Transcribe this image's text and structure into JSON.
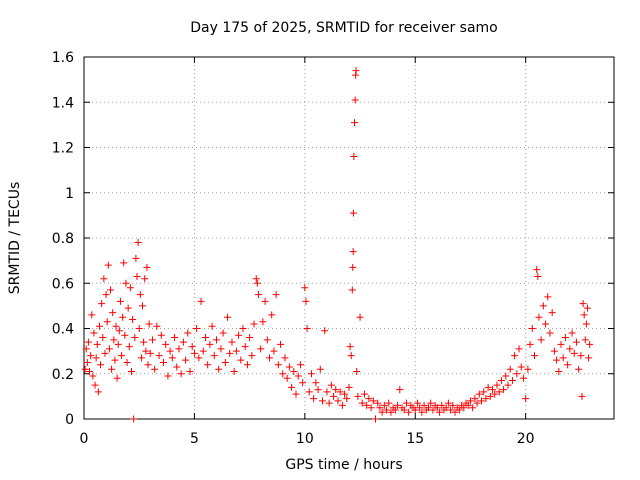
{
  "chart_data": {
    "type": "scatter",
    "title": "Day 175 of 2025, SRMTID for receiver samo",
    "xlabel": "GPS time / hours",
    "ylabel": "SRMTID / TECUs",
    "xlim": [
      0,
      24
    ],
    "ylim": [
      0,
      1.6
    ],
    "x_ticks": [
      0,
      5,
      10,
      15,
      20
    ],
    "y_ticks": [
      0,
      0.2,
      0.4,
      0.6,
      0.8,
      1,
      1.2,
      1.4,
      1.6
    ],
    "x_tick_labels": [
      "0",
      "5",
      "10",
      "15",
      "20"
    ],
    "y_tick_labels": [
      "0",
      "0.2",
      "0.4",
      "0.6",
      "0.8",
      "1",
      "1.2",
      "1.4",
      "1.6"
    ],
    "grid": true,
    "marker": "+",
    "marker_color": "#ff0000",
    "series": [
      {
        "name": "SRMTID",
        "points": [
          [
            0.05,
            0.22
          ],
          [
            0.1,
            0.31
          ],
          [
            0.15,
            0.25
          ],
          [
            0.2,
            0.34
          ],
          [
            0.25,
            0.21
          ],
          [
            0.3,
            0.28
          ],
          [
            0.35,
            0.46
          ],
          [
            0.4,
            0.19
          ],
          [
            0.45,
            0.38
          ],
          [
            0.5,
            0.15
          ],
          [
            0.55,
            0.27
          ],
          [
            0.6,
            0.33
          ],
          [
            0.65,
            0.12
          ],
          [
            0.7,
            0.41
          ],
          [
            0.75,
            0.24
          ],
          [
            0.8,
            0.51
          ],
          [
            0.85,
            0.36
          ],
          [
            0.9,
            0.62
          ],
          [
            0.95,
            0.29
          ],
          [
            1.0,
            0.55
          ],
          [
            1.05,
            0.43
          ],
          [
            1.1,
            0.68
          ],
          [
            1.15,
            0.31
          ],
          [
            1.2,
            0.57
          ],
          [
            1.25,
            0.22
          ],
          [
            1.3,
            0.47
          ],
          [
            1.35,
            0.35
          ],
          [
            1.4,
            0.26
          ],
          [
            1.45,
            0.41
          ],
          [
            1.5,
            0.18
          ],
          [
            1.55,
            0.33
          ],
          [
            1.6,
            0.39
          ],
          [
            1.65,
            0.52
          ],
          [
            1.7,
            0.28
          ],
          [
            1.75,
            0.45
          ],
          [
            1.8,
            0.69
          ],
          [
            1.85,
            0.37
          ],
          [
            1.9,
            0.6
          ],
          [
            1.95,
            0.25
          ],
          [
            2.0,
            0.49
          ],
          [
            2.05,
            0.32
          ],
          [
            2.1,
            0.58
          ],
          [
            2.15,
            0.21
          ],
          [
            2.2,
            0.44
          ],
          [
            2.25,
            0.0
          ],
          [
            2.3,
            0.36
          ],
          [
            2.35,
            0.71
          ],
          [
            2.4,
            0.63
          ],
          [
            2.45,
            0.78
          ],
          [
            2.5,
            0.4
          ],
          [
            2.55,
            0.55
          ],
          [
            2.6,
            0.27
          ],
          [
            2.65,
            0.5
          ],
          [
            2.7,
            0.34
          ],
          [
            2.75,
            0.62
          ],
          [
            2.8,
            0.3
          ],
          [
            2.85,
            0.67
          ],
          [
            2.9,
            0.24
          ],
          [
            2.95,
            0.42
          ],
          [
            3.0,
            0.29
          ],
          [
            3.1,
            0.35
          ],
          [
            3.2,
            0.22
          ],
          [
            3.3,
            0.41
          ],
          [
            3.4,
            0.28
          ],
          [
            3.5,
            0.37
          ],
          [
            3.6,
            0.25
          ],
          [
            3.7,
            0.33
          ],
          [
            3.8,
            0.19
          ],
          [
            3.9,
            0.3
          ],
          [
            4.0,
            0.27
          ],
          [
            4.1,
            0.36
          ],
          [
            4.2,
            0.23
          ],
          [
            4.3,
            0.31
          ],
          [
            4.4,
            0.2
          ],
          [
            4.5,
            0.34
          ],
          [
            4.6,
            0.26
          ],
          [
            4.7,
            0.38
          ],
          [
            4.8,
            0.21
          ],
          [
            4.9,
            0.32
          ],
          [
            5.0,
            0.29
          ],
          [
            5.1,
            0.4
          ],
          [
            5.2,
            0.27
          ],
          [
            5.3,
            0.52
          ],
          [
            5.4,
            0.3
          ],
          [
            5.5,
            0.36
          ],
          [
            5.6,
            0.24
          ],
          [
            5.7,
            0.33
          ],
          [
            5.8,
            0.41
          ],
          [
            5.9,
            0.28
          ],
          [
            6.0,
            0.35
          ],
          [
            6.1,
            0.22
          ],
          [
            6.2,
            0.31
          ],
          [
            6.3,
            0.38
          ],
          [
            6.4,
            0.25
          ],
          [
            6.5,
            0.45
          ],
          [
            6.6,
            0.29
          ],
          [
            6.7,
            0.34
          ],
          [
            6.8,
            0.21
          ],
          [
            6.9,
            0.3
          ],
          [
            7.0,
            0.37
          ],
          [
            7.1,
            0.26
          ],
          [
            7.2,
            0.4
          ],
          [
            7.3,
            0.32
          ],
          [
            7.4,
            0.24
          ],
          [
            7.5,
            0.36
          ],
          [
            7.6,
            0.28
          ],
          [
            7.7,
            0.42
          ],
          [
            7.8,
            0.62
          ],
          [
            7.85,
            0.6
          ],
          [
            7.9,
            0.55
          ],
          [
            8.0,
            0.31
          ],
          [
            8.1,
            0.43
          ],
          [
            8.2,
            0.52
          ],
          [
            8.3,
            0.35
          ],
          [
            8.4,
            0.27
          ],
          [
            8.5,
            0.46
          ],
          [
            8.6,
            0.3
          ],
          [
            8.7,
            0.55
          ],
          [
            8.8,
            0.24
          ],
          [
            8.9,
            0.33
          ],
          [
            9.0,
            0.2
          ],
          [
            9.1,
            0.27
          ],
          [
            9.2,
            0.18
          ],
          [
            9.3,
            0.23
          ],
          [
            9.4,
            0.14
          ],
          [
            9.5,
            0.21
          ],
          [
            9.6,
            0.11
          ],
          [
            9.7,
            0.19
          ],
          [
            9.8,
            0.24
          ],
          [
            9.9,
            0.16
          ],
          [
            10.0,
            0.58
          ],
          [
            10.05,
            0.52
          ],
          [
            10.1,
            0.4
          ],
          [
            10.2,
            0.12
          ],
          [
            10.3,
            0.2
          ],
          [
            10.4,
            0.09
          ],
          [
            10.5,
            0.16
          ],
          [
            10.6,
            0.13
          ],
          [
            10.7,
            0.22
          ],
          [
            10.8,
            0.08
          ],
          [
            10.9,
            0.39
          ],
          [
            11.0,
            0.12
          ],
          [
            11.1,
            0.07
          ],
          [
            11.2,
            0.15
          ],
          [
            11.3,
            0.1
          ],
          [
            11.4,
            0.13
          ],
          [
            11.5,
            0.08
          ],
          [
            11.6,
            0.12
          ],
          [
            11.7,
            0.06
          ],
          [
            11.8,
            0.11
          ],
          [
            11.9,
            0.09
          ],
          [
            12.0,
            0.14
          ],
          [
            12.05,
            0.32
          ],
          [
            12.1,
            0.28
          ],
          [
            12.15,
            0.57
          ],
          [
            12.17,
            0.67
          ],
          [
            12.19,
            0.74
          ],
          [
            12.2,
            0.91
          ],
          [
            12.22,
            1.16
          ],
          [
            12.25,
            1.31
          ],
          [
            12.28,
            1.41
          ],
          [
            12.3,
            1.52
          ],
          [
            12.32,
            1.54
          ],
          [
            12.35,
            0.21
          ],
          [
            12.4,
            0.1
          ],
          [
            12.5,
            0.45
          ],
          [
            12.6,
            0.07
          ],
          [
            12.7,
            0.11
          ],
          [
            12.8,
            0.06
          ],
          [
            12.9,
            0.09
          ],
          [
            13.0,
            0.05
          ],
          [
            13.1,
            0.08
          ],
          [
            13.2,
            0.0
          ],
          [
            13.3,
            0.07
          ],
          [
            13.4,
            0.05
          ],
          [
            13.5,
            0.03
          ],
          [
            13.6,
            0.06
          ],
          [
            13.7,
            0.04
          ],
          [
            13.8,
            0.07
          ],
          [
            13.9,
            0.03
          ],
          [
            14.0,
            0.05
          ],
          [
            14.1,
            0.04
          ],
          [
            14.2,
            0.06
          ],
          [
            14.3,
            0.13
          ],
          [
            14.4,
            0.05
          ],
          [
            14.5,
            0.04
          ],
          [
            14.6,
            0.07
          ],
          [
            14.7,
            0.03
          ],
          [
            14.8,
            0.06
          ],
          [
            14.9,
            0.05
          ],
          [
            15.0,
            0.04
          ],
          [
            15.1,
            0.07
          ],
          [
            15.2,
            0.05
          ],
          [
            15.3,
            0.03
          ],
          [
            15.4,
            0.06
          ],
          [
            15.5,
            0.04
          ],
          [
            15.6,
            0.05
          ],
          [
            15.7,
            0.07
          ],
          [
            15.8,
            0.04
          ],
          [
            15.9,
            0.06
          ],
          [
            16.0,
            0.05
          ],
          [
            16.1,
            0.03
          ],
          [
            16.2,
            0.06
          ],
          [
            16.3,
            0.04
          ],
          [
            16.4,
            0.05
          ],
          [
            16.5,
            0.07
          ],
          [
            16.6,
            0.04
          ],
          [
            16.7,
            0.06
          ],
          [
            16.8,
            0.03
          ],
          [
            16.9,
            0.05
          ],
          [
            17.0,
            0.04
          ],
          [
            17.1,
            0.06
          ],
          [
            17.2,
            0.05
          ],
          [
            17.3,
            0.07
          ],
          [
            17.4,
            0.06
          ],
          [
            17.5,
            0.08
          ],
          [
            17.6,
            0.05
          ],
          [
            17.7,
            0.09
          ],
          [
            17.8,
            0.07
          ],
          [
            17.9,
            0.11
          ],
          [
            18.0,
            0.08
          ],
          [
            18.1,
            0.12
          ],
          [
            18.2,
            0.09
          ],
          [
            18.3,
            0.14
          ],
          [
            18.4,
            0.1
          ],
          [
            18.5,
            0.13
          ],
          [
            18.6,
            0.11
          ],
          [
            18.7,
            0.15
          ],
          [
            18.8,
            0.12
          ],
          [
            18.9,
            0.17
          ],
          [
            19.0,
            0.13
          ],
          [
            19.1,
            0.19
          ],
          [
            19.2,
            0.15
          ],
          [
            19.3,
            0.22
          ],
          [
            19.4,
            0.17
          ],
          [
            19.5,
            0.28
          ],
          [
            19.6,
            0.2
          ],
          [
            19.7,
            0.31
          ],
          [
            19.8,
            0.23
          ],
          [
            19.9,
            0.18
          ],
          [
            20.0,
            0.09
          ],
          [
            20.1,
            0.22
          ],
          [
            20.2,
            0.33
          ],
          [
            20.3,
            0.4
          ],
          [
            20.4,
            0.28
          ],
          [
            20.5,
            0.66
          ],
          [
            20.55,
            0.63
          ],
          [
            20.6,
            0.45
          ],
          [
            20.7,
            0.35
          ],
          [
            20.8,
            0.5
          ],
          [
            20.9,
            0.42
          ],
          [
            21.0,
            0.54
          ],
          [
            21.1,
            0.38
          ],
          [
            21.2,
            0.47
          ],
          [
            21.3,
            0.3
          ],
          [
            21.4,
            0.26
          ],
          [
            21.5,
            0.21
          ],
          [
            21.6,
            0.33
          ],
          [
            21.7,
            0.27
          ],
          [
            21.8,
            0.36
          ],
          [
            21.9,
            0.24
          ],
          [
            22.0,
            0.31
          ],
          [
            22.1,
            0.38
          ],
          [
            22.2,
            0.29
          ],
          [
            22.3,
            0.34
          ],
          [
            22.4,
            0.22
          ],
          [
            22.5,
            0.28
          ],
          [
            22.55,
            0.1
          ],
          [
            22.6,
            0.51
          ],
          [
            22.65,
            0.46
          ],
          [
            22.7,
            0.35
          ],
          [
            22.75,
            0.42
          ],
          [
            22.8,
            0.49
          ],
          [
            22.85,
            0.27
          ],
          [
            22.9,
            0.33
          ]
        ]
      }
    ]
  }
}
